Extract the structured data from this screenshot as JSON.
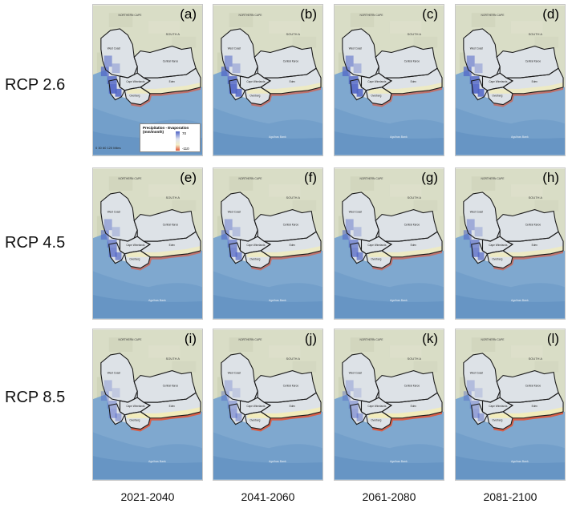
{
  "rows": [
    {
      "label": "RCP 2.6",
      "panels": [
        "(a)",
        "(b)",
        "(c)",
        "(d)"
      ]
    },
    {
      "label": "RCP 4.5",
      "panels": [
        "(e)",
        "(f)",
        "(g)",
        "(h)"
      ]
    },
    {
      "label": "RCP 8.5",
      "panels": [
        "(i)",
        "(j)",
        "(k)",
        "(l)"
      ]
    }
  ],
  "columns": [
    "2021-2040",
    "2041-2060",
    "2061-2080",
    "2081-2100"
  ],
  "map_labels": {
    "northern_cape": "NORTHERN CAPE",
    "south_africa": "SOUTH A",
    "west_coast": "West Coast",
    "central_karoo": "Central Karoo",
    "cape_winelands": "Cape Winelands",
    "eden": "Eden",
    "overberg": "Overberg",
    "ocean_label": "Agulhas Bank"
  },
  "legend": {
    "title": "Precipitation - Evaporation (mm/month)",
    "max": "70",
    "min": "-110",
    "scale": "0   30   60        120 Miles",
    "colors": {
      "wet": "#4f64c6",
      "neutral": "#dfe3f0",
      "dry": "#e0563a"
    }
  }
}
